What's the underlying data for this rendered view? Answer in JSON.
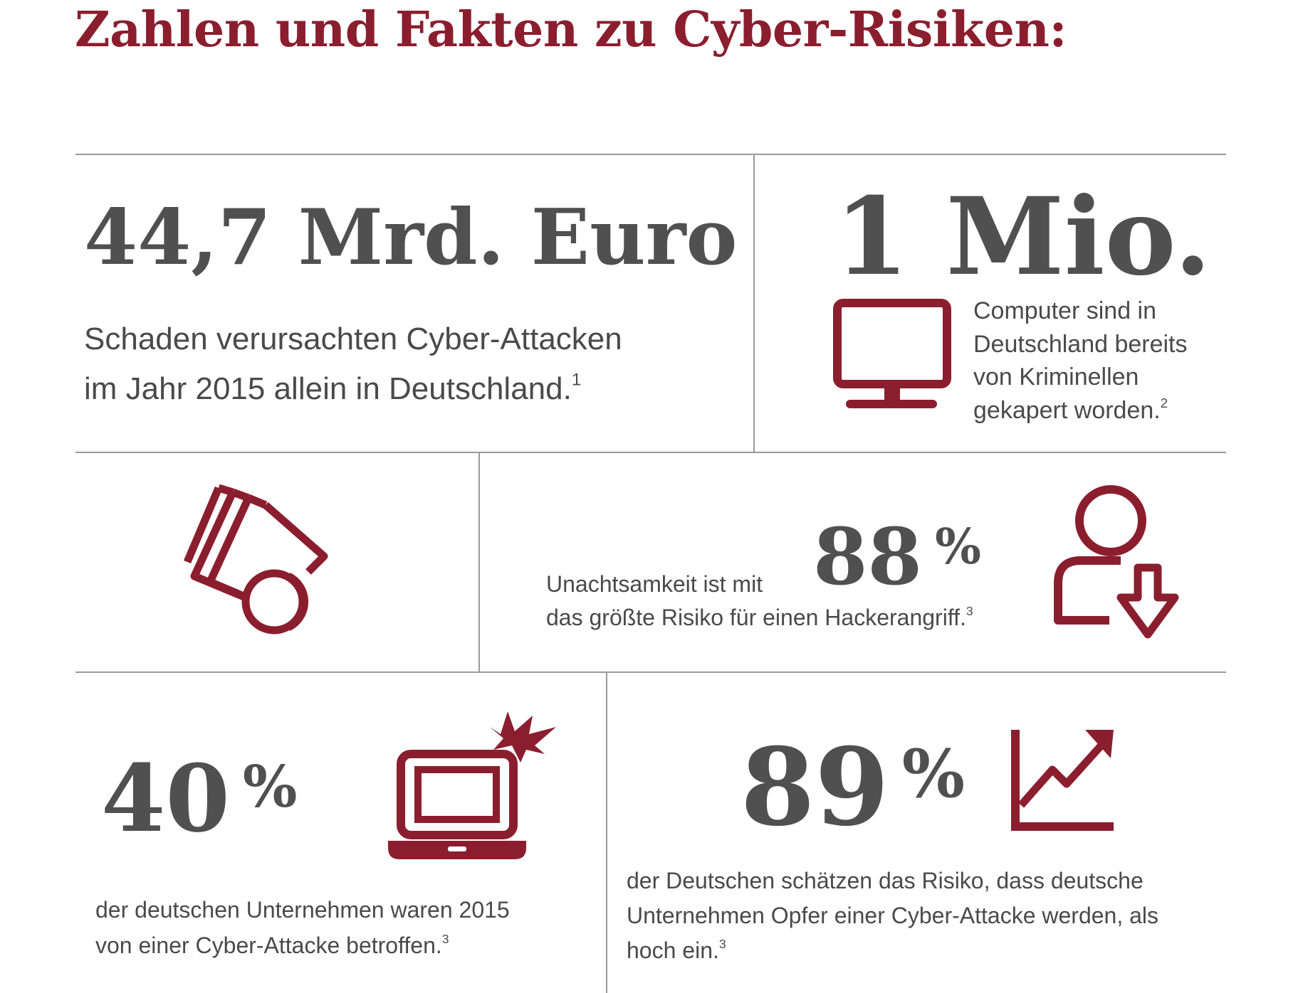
{
  "title": "Zahlen und Fakten zu Cyber-Risiken:",
  "colors": {
    "accent": "#8b1e2e",
    "figure": "#505050",
    "text": "#4a4a4a",
    "rule": "#9a9a9a"
  },
  "facts": {
    "damage": {
      "figure": "44,7 Mrd. Euro",
      "line1": "Schaden verursachten Cyber-Attacken",
      "line2": "im Jahr 2015 allein in Deutschland.",
      "footnote": "1"
    },
    "computers": {
      "figure": "1 Mio.",
      "icon": "monitor-icon",
      "lines": [
        "Computer sind in",
        "Deutschland bereits",
        "von Kriminellen",
        "gekapert worden."
      ],
      "footnote": "2"
    },
    "money": {
      "icon": "money-cards-coins-icon"
    },
    "carelessness": {
      "number": "88",
      "percent": "%",
      "line1": "Unachtsamkeit ist mit",
      "line2": "das größte Risiko für einen Hackerangriff.",
      "footnote": "3",
      "icon": "user-download-icon"
    },
    "companies": {
      "number": "40",
      "percent": "%",
      "icon": "laptop-explosion-icon",
      "line1": "der deutschen Unternehmen waren 2015",
      "line2": "von einer Cyber-Attacke betroffen.",
      "footnote": "3"
    },
    "risk": {
      "number": "89",
      "percent": "%",
      "icon": "rising-chart-icon",
      "line1": "der Deutschen schätzen das Risiko, dass deutsche",
      "line2": "Unternehmen Opfer einer Cyber-Attacke werden, als",
      "line3": "hoch ein.",
      "footnote": "3"
    }
  }
}
